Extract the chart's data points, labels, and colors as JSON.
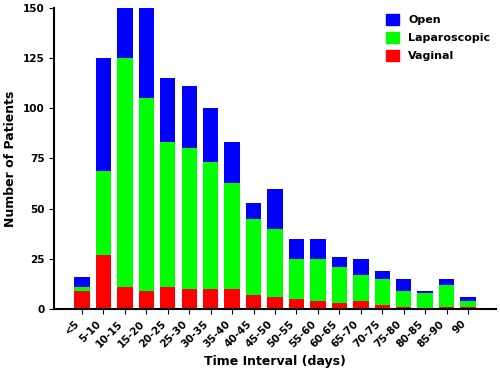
{
  "categories": [
    "<5",
    "5-10",
    "10-15",
    "15-20",
    "20-25",
    "25-30",
    "30-35",
    "35-40",
    "40-45",
    "45-50",
    "50-55",
    "55-60",
    "60-65",
    "65-70",
    "70-75",
    "75-80",
    "80-85",
    "85-90",
    "90"
  ],
  "vaginal": [
    9,
    27,
    11,
    9,
    11,
    10,
    10,
    10,
    7,
    6,
    5,
    4,
    3,
    4,
    2,
    1,
    0,
    1,
    1
  ],
  "laparoscopic": [
    2,
    42,
    114,
    96,
    72,
    70,
    63,
    53,
    38,
    34,
    20,
    21,
    18,
    13,
    13,
    8,
    8,
    11,
    3
  ],
  "open": [
    5,
    56,
    25,
    45,
    32,
    31,
    27,
    20,
    8,
    20,
    10,
    10,
    5,
    8,
    4,
    6,
    1,
    3,
    2
  ],
  "colors": {
    "open": "#0000FF",
    "laparoscopic": "#00FF00",
    "vaginal": "#FF0000"
  },
  "ylabel": "Number of Patients",
  "xlabel": "Time Interval (days)",
  "ylim": [
    0,
    150
  ],
  "yticks": [
    0,
    25,
    50,
    75,
    100,
    125,
    150
  ],
  "background_color": "#ffffff"
}
